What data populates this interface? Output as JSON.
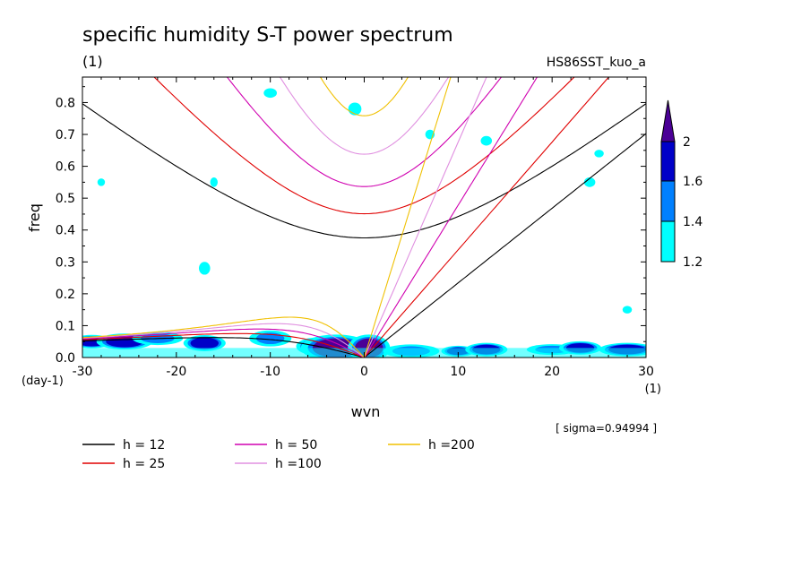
{
  "chart_data": {
    "type": "heatmap",
    "title": "specific humidity S-T power spectrum",
    "subtitle_left": "(1)",
    "subtitle_right": "HS86SST_kuo_a",
    "xlabel": "wvn",
    "ylabel": "freq",
    "x_unit": "(1)",
    "y_unit": "(day-1)",
    "sigma_note": "[ sigma=0.94994 ]",
    "xlim": [
      -30,
      30
    ],
    "ylim": [
      0,
      0.88
    ],
    "x_ticks": [
      -30,
      -20,
      -10,
      0,
      10,
      20,
      30
    ],
    "x_tick_labels": [
      "-30",
      "-20",
      "-10",
      "0",
      "10",
      "20",
      "30"
    ],
    "y_ticks": [
      0,
      0.1,
      0.2,
      0.3,
      0.4,
      0.5,
      0.6,
      0.7,
      0.8
    ],
    "y_tick_labels": [
      "0.0",
      "0.1",
      "0.2",
      "0.3",
      "0.4",
      "0.5",
      "0.6",
      "0.7",
      "0.8"
    ],
    "colorbar": {
      "levels": [
        1.2,
        1.4,
        1.6,
        2
      ],
      "labels": [
        "1.2",
        "1.4",
        "1.6",
        "2"
      ],
      "colors": [
        "#00ffff",
        "#0080ff",
        "#0000c8",
        "#4b0096"
      ]
    },
    "dispersion_curves": [
      {
        "name": "h = 12",
        "h": 12,
        "color": "#000000"
      },
      {
        "name": "h = 25",
        "h": 25,
        "color": "#e00000"
      },
      {
        "name": "h = 50",
        "h": 50,
        "color": "#d000b0"
      },
      {
        "name": "h =100",
        "h": 100,
        "color": "#e090e0"
      },
      {
        "name": "h =200",
        "h": 200,
        "color": "#f0c000"
      }
    ],
    "spectrum_blobs": [
      {
        "x": -29,
        "y": 0.05,
        "rx": 1.5,
        "ry": 0.015,
        "level": 1.6
      },
      {
        "x": -25.5,
        "y": 0.05,
        "rx": 2.0,
        "ry": 0.018,
        "level": 1.6
      },
      {
        "x": -22,
        "y": 0.06,
        "rx": 1.8,
        "ry": 0.015,
        "level": 1.4
      },
      {
        "x": -17,
        "y": 0.045,
        "rx": 1.5,
        "ry": 0.018,
        "level": 1.6
      },
      {
        "x": -10,
        "y": 0.06,
        "rx": 1.5,
        "ry": 0.018,
        "level": 1.4
      },
      {
        "x": -5,
        "y": 0.035,
        "rx": 1.5,
        "ry": 0.02,
        "level": 1.6
      },
      {
        "x": -3,
        "y": 0.03,
        "rx": 2.5,
        "ry": 0.03,
        "level": 2.0
      },
      {
        "x": 0.5,
        "y": 0.03,
        "rx": 1.5,
        "ry": 0.03,
        "level": 2.0
      },
      {
        "x": 5,
        "y": 0.02,
        "rx": 2.0,
        "ry": 0.015,
        "level": 1.4
      },
      {
        "x": 10,
        "y": 0.02,
        "rx": 1.2,
        "ry": 0.012,
        "level": 1.6
      },
      {
        "x": 13,
        "y": 0.025,
        "rx": 1.5,
        "ry": 0.015,
        "level": 1.6
      },
      {
        "x": 20,
        "y": 0.025,
        "rx": 1.8,
        "ry": 0.012,
        "level": 1.4
      },
      {
        "x": 23,
        "y": 0.03,
        "rx": 1.5,
        "ry": 0.015,
        "level": 1.6
      },
      {
        "x": 28,
        "y": 0.025,
        "rx": 2.0,
        "ry": 0.015,
        "level": 1.6
      },
      {
        "x": -17,
        "y": 0.28,
        "rx": 0.6,
        "ry": 0.02,
        "level": 1.2
      },
      {
        "x": -10,
        "y": 0.83,
        "rx": 0.7,
        "ry": 0.015,
        "level": 1.2
      },
      {
        "x": -1,
        "y": 0.78,
        "rx": 0.7,
        "ry": 0.02,
        "level": 1.2
      },
      {
        "x": 7,
        "y": 0.7,
        "rx": 0.5,
        "ry": 0.015,
        "level": 1.2
      },
      {
        "x": 13,
        "y": 0.68,
        "rx": 0.6,
        "ry": 0.015,
        "level": 1.2
      },
      {
        "x": 24,
        "y": 0.55,
        "rx": 0.6,
        "ry": 0.015,
        "level": 1.2
      },
      {
        "x": -16,
        "y": 0.55,
        "rx": 0.4,
        "ry": 0.015,
        "level": 1.2
      },
      {
        "x": -28,
        "y": 0.55,
        "rx": 0.4,
        "ry": 0.012,
        "level": 1.2
      },
      {
        "x": 28,
        "y": 0.15,
        "rx": 0.5,
        "ry": 0.012,
        "level": 1.2
      },
      {
        "x": 25,
        "y": 0.64,
        "rx": 0.5,
        "ry": 0.012,
        "level": 1.2
      }
    ]
  }
}
